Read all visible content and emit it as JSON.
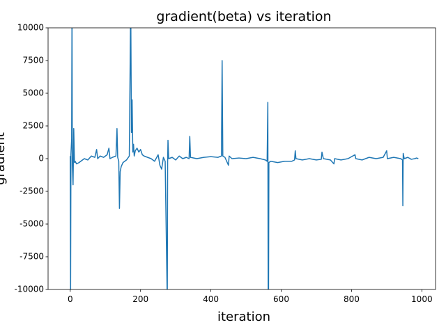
{
  "chart_data": {
    "type": "line",
    "title": "gradient(beta) vs iteration",
    "x_label": "iteration",
    "y_label": "gradient",
    "x": [
      0,
      1,
      2,
      4,
      5,
      6,
      8,
      10,
      12,
      14,
      18,
      25,
      30,
      40,
      50,
      60,
      70,
      75,
      78,
      85,
      95,
      105,
      110,
      113,
      120,
      130,
      133,
      135,
      138,
      140,
      142,
      145,
      150,
      160,
      168,
      172,
      174,
      176,
      178,
      180,
      182,
      185,
      190,
      195,
      200,
      205,
      210,
      220,
      230,
      240,
      250,
      255,
      260,
      265,
      270,
      276,
      277,
      278,
      280,
      290,
      300,
      310,
      320,
      330,
      338,
      340,
      342,
      360,
      380,
      400,
      420,
      430,
      432,
      434,
      440,
      450,
      452,
      460,
      480,
      500,
      520,
      540,
      555,
      560,
      562,
      563,
      564,
      565,
      570,
      590,
      610,
      630,
      638,
      640,
      642,
      660,
      680,
      700,
      714,
      716,
      720,
      740,
      750,
      752,
      770,
      790,
      810,
      812,
      830,
      850,
      870,
      890,
      900,
      902,
      920,
      940,
      945,
      946,
      947,
      950,
      960,
      970,
      980,
      985,
      990
    ],
    "series": [
      {
        "color": "#1f77b4",
        "values": [
          200,
          -10500,
          300,
          1500,
          11000,
          -500,
          -2000,
          2300,
          -300,
          -200,
          -400,
          -300,
          -200,
          0,
          -100,
          200,
          100,
          700,
          0,
          200,
          100,
          300,
          800,
          0,
          100,
          200,
          2300,
          100,
          -200,
          -3800,
          -1000,
          -600,
          -300,
          -100,
          200,
          12000,
          2000,
          4500,
          500,
          1100,
          200,
          600,
          800,
          500,
          700,
          300,
          200,
          100,
          0,
          -200,
          300,
          -500,
          -800,
          100,
          -200,
          -11000,
          -300,
          1400,
          0,
          100,
          -100,
          200,
          0,
          100,
          0,
          1700,
          100,
          0,
          100,
          150,
          100,
          200,
          7500,
          200,
          100,
          -500,
          200,
          0,
          50,
          0,
          100,
          0,
          -100,
          -200,
          4300,
          -11000,
          -11000,
          -300,
          -200,
          -300,
          -200,
          -200,
          -100,
          600,
          0,
          -100,
          0,
          -100,
          -50,
          500,
          0,
          -100,
          -400,
          0,
          -100,
          0,
          300,
          0,
          -100,
          100,
          0,
          100,
          600,
          0,
          100,
          0,
          -100,
          -3600,
          400,
          0,
          100,
          -50,
          0,
          50,
          0
        ]
      }
    ],
    "xlim": [
      -63,
      1039
    ],
    "xticks": [
      0,
      200,
      400,
      600,
      800,
      1000
    ],
    "ylim": [
      -10000,
      10000
    ],
    "yticks": [
      -10000,
      -7500,
      -5000,
      -2500,
      0,
      2500,
      5000,
      7500,
      10000
    ]
  }
}
